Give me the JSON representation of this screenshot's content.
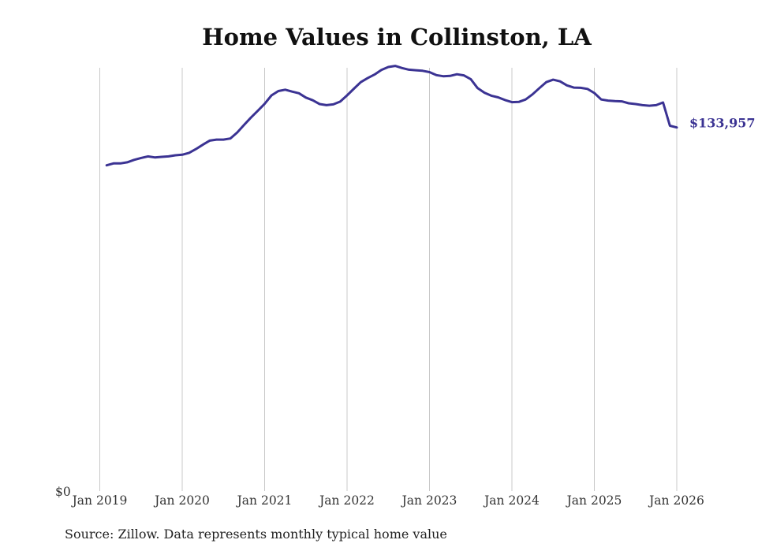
{
  "chart_data": {
    "type": "line",
    "title": "Home Values in Collinston, LA",
    "xlabel": "",
    "ylabel": "",
    "ylim": [
      0,
      156000
    ],
    "y_tick_labels": [
      "$0"
    ],
    "x_ticks": [
      "Jan 2019",
      "Jan 2020",
      "Jan 2021",
      "Jan 2022",
      "Jan 2023",
      "Jan 2024",
      "Jan 2025",
      "Jan 2026"
    ],
    "end_label": "$133,957",
    "line_color": "#3b3393",
    "grid_color": "#c8c8c8",
    "source": "Source: Zillow. Data represents monthly typical home value",
    "series": [
      {
        "name": "Collinston, LA",
        "start": "2019-02",
        "values": [
          120000,
          120700,
          120700,
          121100,
          122000,
          122700,
          123300,
          122900,
          123100,
          123300,
          123700,
          123900,
          124600,
          126000,
          127600,
          129100,
          129500,
          129500,
          129900,
          132100,
          134900,
          137600,
          140100,
          142700,
          145800,
          147400,
          147900,
          147200,
          146600,
          145000,
          144000,
          142600,
          142200,
          142500,
          143500,
          145800,
          148300,
          150700,
          152200,
          153500,
          155200,
          156300,
          156700,
          155900,
          155300,
          155100,
          154900,
          154400,
          153300,
          152900,
          153000,
          153600,
          153200,
          151800,
          148500,
          146800,
          145700,
          145100,
          144100,
          143300,
          143400,
          144300,
          146200,
          148500,
          150700,
          151600,
          151000,
          149500,
          148700,
          148600,
          148200,
          146700,
          144300,
          143900,
          143700,
          143600,
          142900,
          142600,
          142200,
          142000,
          142200,
          143200,
          134600,
          133957
        ]
      }
    ]
  }
}
